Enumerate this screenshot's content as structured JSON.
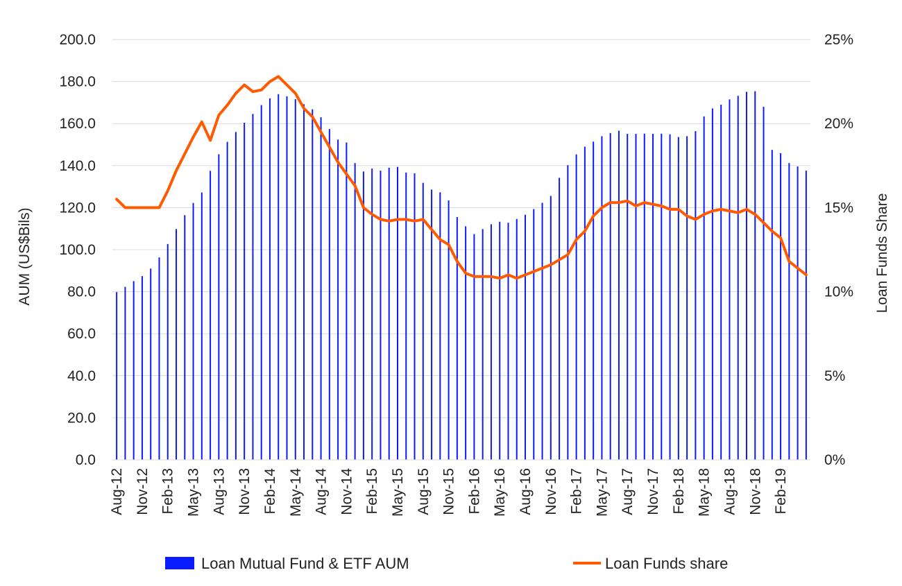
{
  "chart_data": {
    "type": "bar",
    "combo": "bar + line (secondary axis)",
    "title": "",
    "ylabel": "AUM (US$Bils)",
    "y2label": "Loan Funds Share",
    "ylim": [
      0,
      200
    ],
    "y2lim": [
      0,
      25
    ],
    "yticks": [
      "0.0",
      "20.0",
      "40.0",
      "60.0",
      "80.0",
      "100.0",
      "120.0",
      "140.0",
      "160.0",
      "180.0",
      "200.0"
    ],
    "y2ticks": [
      "0%",
      "5%",
      "10%",
      "15%",
      "20%",
      "25%"
    ],
    "grid": true,
    "legend_position": "bottom",
    "categories": [
      "Aug-12",
      "Sep-12",
      "Oct-12",
      "Nov-12",
      "Dec-12",
      "Jan-13",
      "Feb-13",
      "Mar-13",
      "Apr-13",
      "May-13",
      "Jun-13",
      "Jul-13",
      "Aug-13",
      "Sep-13",
      "Oct-13",
      "Nov-13",
      "Dec-13",
      "Jan-14",
      "Feb-14",
      "Mar-14",
      "Apr-14",
      "May-14",
      "Jun-14",
      "Jul-14",
      "Aug-14",
      "Sep-14",
      "Oct-14",
      "Nov-14",
      "Dec-14",
      "Jan-15",
      "Feb-15",
      "Mar-15",
      "Apr-15",
      "May-15",
      "Jun-15",
      "Jul-15",
      "Aug-15",
      "Sep-15",
      "Oct-15",
      "Nov-15",
      "Dec-15",
      "Jan-16",
      "Feb-16",
      "Mar-16",
      "Apr-16",
      "May-16",
      "Jun-16",
      "Jul-16",
      "Aug-16",
      "Sep-16",
      "Oct-16",
      "Nov-16",
      "Dec-16",
      "Jan-17",
      "Feb-17",
      "Mar-17",
      "Apr-17",
      "May-17",
      "Jun-17",
      "Jul-17",
      "Aug-17",
      "Sep-17",
      "Oct-17",
      "Nov-17",
      "Dec-17",
      "Jan-18",
      "Feb-18",
      "Mar-18",
      "Apr-18",
      "May-18",
      "Jun-18",
      "Jul-18",
      "Aug-18",
      "Sep-18",
      "Oct-18",
      "Nov-18",
      "Dec-18",
      "Jan-19",
      "Feb-19",
      "Mar-19",
      "Apr-19",
      "May-19"
    ],
    "x_tick_labels": [
      "Aug-12",
      "Nov-12",
      "Feb-13",
      "May-13",
      "Aug-13",
      "Nov-13",
      "Feb-14",
      "May-14",
      "Aug-14",
      "Nov-14",
      "Feb-15",
      "May-15",
      "Aug-15",
      "Nov-15",
      "Feb-16",
      "May-16",
      "Aug-16",
      "Nov-16",
      "Feb-17",
      "May-17",
      "Aug-17",
      "Nov-17",
      "Feb-18",
      "May-18",
      "Aug-18",
      "Nov-18",
      "Feb-19"
    ],
    "series": [
      {
        "name": "Loan Mutual Fund & ETF AUM",
        "type": "bar",
        "axis": "left",
        "color": "#0a1cff",
        "values": [
          79.8,
          82.3,
          85.0,
          87.4,
          91.0,
          96.3,
          102.7,
          109.8,
          116.4,
          122.2,
          127.2,
          137.5,
          145.4,
          151.3,
          156.0,
          160.4,
          164.6,
          168.8,
          172.0,
          174.0,
          173.0,
          171.6,
          169.2,
          166.8,
          163.0,
          157.4,
          152.4,
          151.0,
          141.2,
          137.2,
          138.6,
          137.6,
          139.0,
          139.4,
          136.7,
          136.3,
          131.8,
          128.6,
          127.3,
          123.4,
          115.5,
          111.1,
          107.4,
          109.8,
          112.1,
          113.3,
          112.8,
          114.6,
          116.6,
          119.3,
          122.3,
          125.6,
          134.2,
          140.2,
          145.3,
          149.0,
          151.4,
          154.0,
          155.5,
          156.6,
          155.1,
          155.1,
          155.2,
          155.1,
          155.2,
          154.9,
          153.6,
          154.0,
          156.4,
          163.4,
          167.2,
          169.0,
          171.5,
          173.2,
          175.1,
          175.4,
          168.0,
          147.5,
          145.9,
          141.2,
          139.6,
          137.6
        ]
      },
      {
        "name": "Loan Funds share",
        "type": "line",
        "axis": "right",
        "color": "#ff5a00",
        "values": [
          15.5,
          15.0,
          15.0,
          15.0,
          15.0,
          15.0,
          16.0,
          17.2,
          18.2,
          19.2,
          20.1,
          19.0,
          20.5,
          21.1,
          21.8,
          22.3,
          21.9,
          22.0,
          22.5,
          22.8,
          22.3,
          21.8,
          20.9,
          20.4,
          19.5,
          18.6,
          17.7,
          17.0,
          16.3,
          15.0,
          14.6,
          14.3,
          14.2,
          14.3,
          14.3,
          14.2,
          14.3,
          13.7,
          13.1,
          12.8,
          11.8,
          11.1,
          10.9,
          10.9,
          10.9,
          10.8,
          11.0,
          10.8,
          11.0,
          11.2,
          11.4,
          11.6,
          11.9,
          12.2,
          13.1,
          13.6,
          14.5,
          15.0,
          15.3,
          15.3,
          15.4,
          15.1,
          15.3,
          15.2,
          15.1,
          14.9,
          14.9,
          14.5,
          14.3,
          14.6,
          14.8,
          14.9,
          14.8,
          14.7,
          14.9,
          14.6,
          14.1,
          13.6,
          13.2,
          11.8,
          11.4,
          11.0
        ]
      }
    ]
  }
}
